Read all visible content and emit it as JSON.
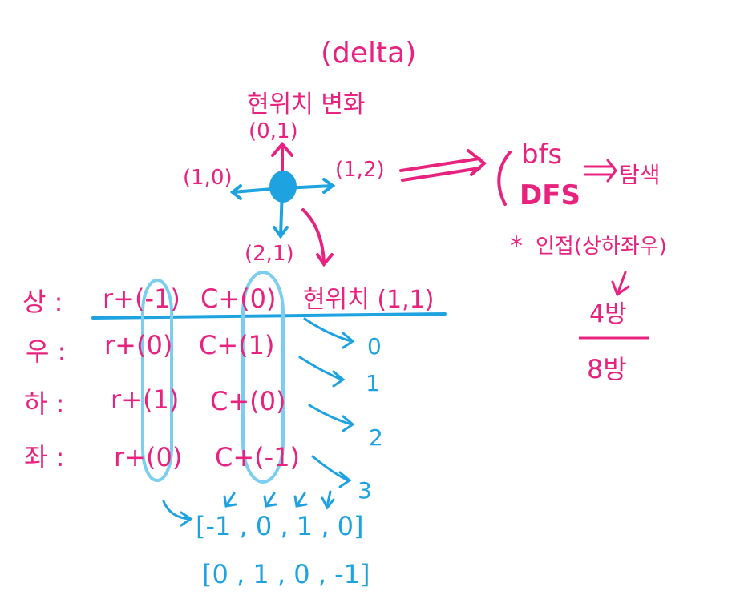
{
  "colors": {
    "pink": "#e8237f",
    "blue": "#1fa3e0",
    "background": "#ffffff"
  },
  "header": {
    "delta": "(delta)",
    "subtitle": "현위치 변화"
  },
  "compass": {
    "up": "(0,1)",
    "left": "(1,0)",
    "right": "(1,2)",
    "down": "(2,1)"
  },
  "search": {
    "bfs": "bfs",
    "dfs": "DFS",
    "result": "탐색",
    "note": "인접(상하좌우)",
    "four": "4방",
    "eight": "8방"
  },
  "table": {
    "header_label": "현위치 (1,1)",
    "rows": [
      {
        "dir": "상 :",
        "r": "r+(-1)",
        "c": "C+(0)",
        "index": "0"
      },
      {
        "dir": "우 :",
        "r": "r+(0)",
        "c": "C+(1)",
        "index": "1"
      },
      {
        "dir": "하 :",
        "r": "r+(1)",
        "c": "C+(0)",
        "index": "2"
      },
      {
        "dir": "좌 :",
        "r": "r+(0)",
        "c": "C+(-1)",
        "index": "3"
      }
    ]
  },
  "arrays": {
    "dr": "[-1 , 0 , 1 , 0]",
    "dc": "[0 , 1 , 0 , -1]"
  }
}
